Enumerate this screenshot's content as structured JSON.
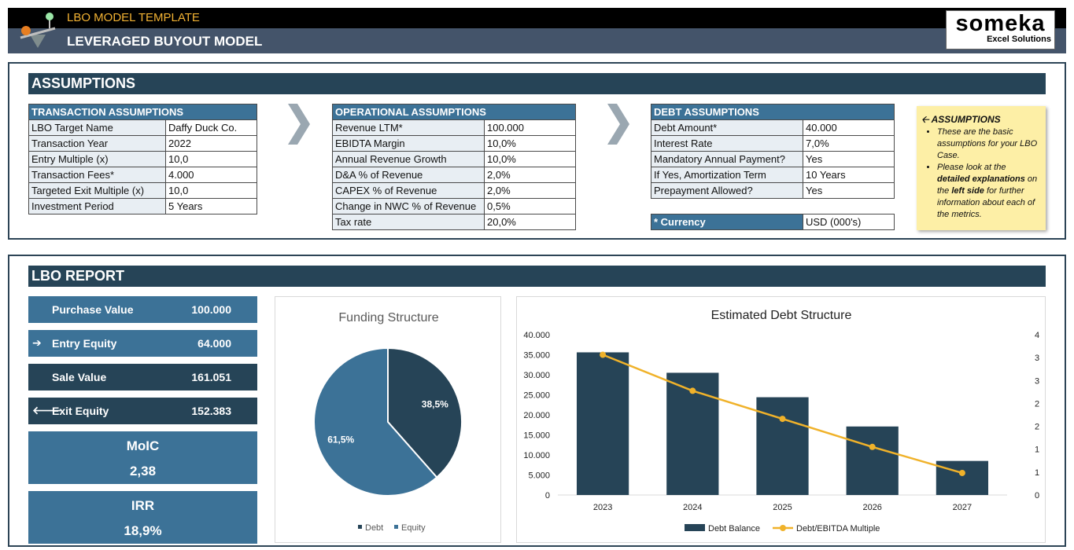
{
  "header": {
    "template_title": "LBO MODEL TEMPLATE",
    "model_title": "LEVERAGED BUYOUT MODEL",
    "logo_name": "someka",
    "logo_sub": "Excel Solutions"
  },
  "assumptions": {
    "section_title": "ASSUMPTIONS",
    "transaction": {
      "title": "TRANSACTION ASSUMPTIONS",
      "rows": [
        {
          "label": "LBO Target Name",
          "value": "Daffy Duck Co."
        },
        {
          "label": "Transaction Year",
          "value": "2022"
        },
        {
          "label": "Entry Multiple (x)",
          "value": "10,0"
        },
        {
          "label": "Transaction Fees*",
          "value": "4.000"
        },
        {
          "label": "Targeted Exit Multiple (x)",
          "value": "10,0"
        },
        {
          "label": "Investment Period",
          "value": "5 Years"
        }
      ]
    },
    "operational": {
      "title": "OPERATIONAL ASSUMPTIONS",
      "rows": [
        {
          "label": "Revenue LTM*",
          "value": "100.000"
        },
        {
          "label": "EBIDTA Margin",
          "value": "10,0%"
        },
        {
          "label": "Annual Revenue Growth",
          "value": "10,0%"
        },
        {
          "label": "D&A % of Revenue",
          "value": "2,0%"
        },
        {
          "label": "CAPEX % of Revenue",
          "value": "2,0%"
        },
        {
          "label": "Change in NWC % of Revenue",
          "value": "0,5%"
        },
        {
          "label": "Tax rate",
          "value": "20,0%"
        }
      ]
    },
    "debt": {
      "title": "DEBT ASSUMPTIONS",
      "rows": [
        {
          "label": "Debt Amount*",
          "value": "40.000"
        },
        {
          "label": "Interest Rate",
          "value": "7,0%"
        },
        {
          "label": "Mandatory Annual Payment?",
          "value": "Yes"
        },
        {
          "label": "If Yes, Amortization Term",
          "value": "10 Years"
        },
        {
          "label": "Prepayment Allowed?",
          "value": "Yes"
        }
      ],
      "currency_label": "* Currency",
      "currency_value": "USD (000's)"
    },
    "note": {
      "title": "ASSUMPTIONS",
      "bullet1": "These are the basic assumptions for your LBO Case.",
      "bullet2_pre": "Please look at the ",
      "bullet2_b1": "detailed explanations",
      "bullet2_mid": " on the ",
      "bullet2_b2": "left side",
      "bullet2_post": " for further information about each of the metrics."
    }
  },
  "report": {
    "section_title": "LBO REPORT",
    "purchase_label": "Purchase Value",
    "purchase_value": "100.000",
    "entry_label": "Entry Equity",
    "entry_value": "64.000",
    "sale_label": "Sale Value",
    "sale_value": "161.051",
    "exit_label": "Exit Equity",
    "exit_value": "152.383",
    "moic_label": "MoIC",
    "moic_value": "2,38",
    "irr_label": "IRR",
    "irr_value": "18,9%"
  },
  "colors": {
    "dark": "#264457",
    "light": "#3c7297",
    "line": "#f0b22a"
  },
  "chart_data": [
    {
      "type": "pie",
      "title": "Funding Structure",
      "categories": [
        "Debt",
        "Equity"
      ],
      "values": [
        38.5,
        61.5
      ],
      "labels": [
        "38,5%",
        "61,5%"
      ],
      "legend": "bottom"
    },
    {
      "type": "bar",
      "title": "Estimated Debt Structure",
      "categories": [
        "2023",
        "2024",
        "2025",
        "2026",
        "2027"
      ],
      "series": [
        {
          "name": "Debt Balance",
          "values": [
            35600,
            30500,
            24400,
            17100,
            8500
          ]
        },
        {
          "name": "Debt/EBITDA Multiple",
          "type": "line",
          "axis": "right",
          "values": [
            3.5,
            2.6,
            1.9,
            1.2,
            0.55
          ]
        }
      ],
      "y_ticks": [
        "0",
        "5.000",
        "10.000",
        "15.000",
        "20.000",
        "25.000",
        "30.000",
        "35.000",
        "40.000"
      ],
      "ylim": [
        0,
        40000
      ],
      "y2_ticks": [
        "0",
        "1",
        "1",
        "2",
        "2",
        "3",
        "3",
        "4"
      ],
      "y2lim": [
        0,
        4
      ],
      "legend": "bottom"
    }
  ]
}
